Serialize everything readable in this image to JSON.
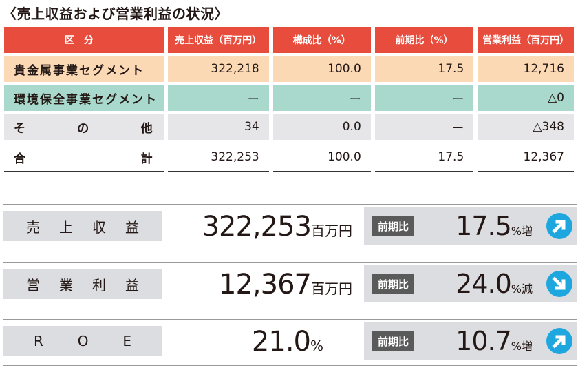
{
  "title": "〈売上収益および営業利益の状況〉",
  "table": {
    "headers": [
      "区分",
      "売上収益（百万円）",
      "構成比（%）",
      "前期比（%）",
      "営業利益（百万円）"
    ],
    "rows": [
      {
        "label": "貴金属事業セグメント",
        "sales": "322,218",
        "ratio": "100.0",
        "yoy": "17.5",
        "op": "12,716"
      },
      {
        "label": "環境保全事業セグメント",
        "sales": "ー",
        "ratio": "ー",
        "yoy": "ー",
        "op": "△0"
      },
      {
        "label_parts": [
          "そ",
          "の",
          "他"
        ],
        "sales": "34",
        "ratio": "0.0",
        "yoy": "ー",
        "op": "△348"
      },
      {
        "label_parts": [
          "合",
          "計"
        ],
        "sales": "322,253",
        "ratio": "100.0",
        "yoy": "17.5",
        "op": "12,367"
      }
    ]
  },
  "kpis": [
    {
      "label_chars": [
        "売",
        "上",
        "収",
        "益"
      ],
      "value": "322,253",
      "unit": "百万円",
      "chip": "前期比",
      "pct": "17.5",
      "pct_unit": "%増",
      "arrow": "arrow-up-right-icon"
    },
    {
      "label_chars": [
        "営",
        "業",
        "利",
        "益"
      ],
      "value": "12,367",
      "unit": "百万円",
      "chip": "前期比",
      "pct": "24.0",
      "pct_unit": "%減",
      "arrow": "arrow-down-right-icon"
    },
    {
      "label_chars": [
        "R",
        "O",
        "E"
      ],
      "value": "21.0",
      "unit": "%",
      "chip": "前期比",
      "pct": "10.7",
      "pct_unit": "%増",
      "arrow": "arrow-up-right-icon"
    }
  ],
  "colors": {
    "header": "#e84c3d",
    "orange_row": "#fcd9b5",
    "green_row": "#a8d9cc",
    "gray_row": "#e6e6e8",
    "arrow": "#1ea7de"
  }
}
